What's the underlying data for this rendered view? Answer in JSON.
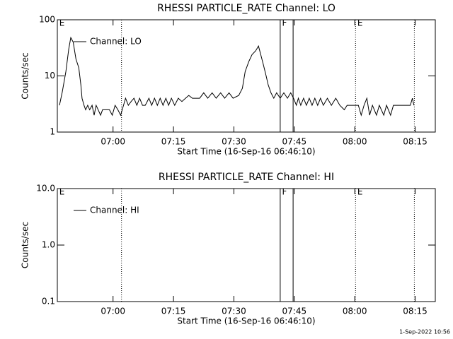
{
  "chart_data": [
    {
      "type": "line",
      "title": "RHESSI PARTICLE_RATE Channel: LO",
      "xlabel": "Start Time (16-Sep-16 06:46:10)",
      "ylabel": "Counts/sec",
      "xlim": [
        406.17,
        500
      ],
      "ylim": [
        1,
        100
      ],
      "log_y": true,
      "xticks": [
        {
          "value": 420,
          "label": "07:00"
        },
        {
          "value": 435,
          "label": "07:15"
        },
        {
          "value": 450,
          "label": "07:30"
        },
        {
          "value": 465,
          "label": "07:45"
        },
        {
          "value": 480,
          "label": "08:00"
        },
        {
          "value": 495,
          "label": "08:15"
        }
      ],
      "yticks": [
        1,
        10,
        100
      ],
      "vlines": [
        {
          "x": 422.1,
          "style": "dotted"
        },
        {
          "x": 461.5,
          "style": "solid"
        },
        {
          "x": 464.7,
          "style": "solid"
        },
        {
          "x": 480.2,
          "style": "dotted"
        },
        {
          "x": 494.8,
          "style": "dotted"
        }
      ],
      "annotations": [
        {
          "x": 406.3,
          "label": "E"
        },
        {
          "x": 461.6,
          "label": "F"
        },
        {
          "x": 480.3,
          "label": "E"
        }
      ],
      "x": [
        406.7,
        407.4,
        408.3,
        409.0,
        409.5,
        410.1,
        410.8,
        411.5,
        412.0,
        412.3,
        412.8,
        413.2,
        413.7,
        414.2,
        414.8,
        415.3,
        415.8,
        416.3,
        416.9,
        417.4,
        418.3,
        419.1,
        419.8,
        420.5,
        421.2,
        421.9,
        422.6,
        423.1,
        423.8,
        424.5,
        425.2,
        425.9,
        426.6,
        427.3,
        428.0,
        428.9,
        429.6,
        430.3,
        431.0,
        431.7,
        432.4,
        433.1,
        433.8,
        434.5,
        435.3,
        436.2,
        437.1,
        438.0,
        438.8,
        439.7,
        441.5,
        442.5,
        443.5,
        444.6,
        445.6,
        446.7,
        447.7,
        448.8,
        449.8,
        451.2,
        452.1,
        452.8,
        453.7,
        454.5,
        455.4,
        456.1,
        456.6,
        457.3,
        458.0,
        458.5,
        459.2,
        459.9,
        460.6,
        461.5,
        462.4,
        463.3,
        464.1,
        464.8,
        465.5,
        466.0,
        466.6,
        467.3,
        468.0,
        468.7,
        469.4,
        470.1,
        470.8,
        471.5,
        472.2,
        473.2,
        474.2,
        475.3,
        476.3,
        477.4,
        478.1,
        479.1,
        479.8,
        480.9,
        481.6,
        482.3,
        483.0,
        483.7,
        484.4,
        485.4,
        486.1,
        487.2,
        487.9,
        488.9,
        489.6,
        491.2,
        492.9,
        493.8,
        494.3,
        494.7
      ],
      "series": [
        {
          "name": "Channel: LO",
          "color": "#000000",
          "values": [
            3,
            5.2,
            12,
            30,
            48,
            40,
            20,
            14,
            7,
            4,
            3,
            2.5,
            3,
            2.5,
            3,
            2,
            3,
            2.5,
            2,
            2.5,
            2.5,
            2.5,
            2,
            3,
            2.5,
            2,
            3,
            4,
            3,
            3.5,
            4,
            3,
            4,
            3,
            3,
            4,
            3,
            4,
            3,
            4,
            3,
            4,
            3,
            4,
            3,
            4,
            3.5,
            4,
            4.5,
            4,
            4,
            5,
            4,
            5,
            4,
            5,
            4,
            5,
            4,
            4.5,
            6,
            12,
            18,
            24,
            28,
            34,
            25,
            16,
            10,
            7,
            5,
            4,
            5,
            4,
            5,
            4,
            5,
            4,
            3,
            4,
            3,
            4,
            3,
            4,
            3,
            4,
            3,
            4,
            3,
            4,
            3,
            4,
            3,
            2.5,
            3,
            3,
            3,
            3,
            2,
            3,
            4,
            2,
            3,
            2,
            3,
            2,
            3,
            2,
            3,
            3,
            3,
            3,
            4,
            3
          ]
        }
      ]
    },
    {
      "type": "line",
      "title": "RHESSI PARTICLE_RATE Channel: HI",
      "xlabel": "Start Time (16-Sep-16 06:46:10)",
      "ylabel": "Counts/sec",
      "xlim": [
        406.17,
        500
      ],
      "ylim": [
        0.1,
        10
      ],
      "log_y": true,
      "xticks": [
        {
          "value": 420,
          "label": "07:00"
        },
        {
          "value": 435,
          "label": "07:15"
        },
        {
          "value": 450,
          "label": "07:30"
        },
        {
          "value": 465,
          "label": "07:45"
        },
        {
          "value": 480,
          "label": "08:00"
        },
        {
          "value": 495,
          "label": "08:15"
        }
      ],
      "yticks": [
        0.1,
        {
          "value": 1,
          "label": "1.0"
        },
        {
          "value": 10,
          "label": "10.0"
        }
      ],
      "vlines": [
        {
          "x": 422.1,
          "style": "dotted"
        },
        {
          "x": 461.5,
          "style": "solid"
        },
        {
          "x": 464.7,
          "style": "solid"
        },
        {
          "x": 480.2,
          "style": "dotted"
        },
        {
          "x": 494.8,
          "style": "dotted"
        }
      ],
      "annotations": [
        {
          "x": 406.3,
          "label": "E"
        },
        {
          "x": 461.6,
          "label": "F"
        },
        {
          "x": 480.3,
          "label": "E"
        }
      ],
      "x": [],
      "series": [
        {
          "name": "Channel: HI",
          "color": "#000000",
          "values": []
        }
      ]
    }
  ],
  "footer": "1-Sep-2022 10:56"
}
